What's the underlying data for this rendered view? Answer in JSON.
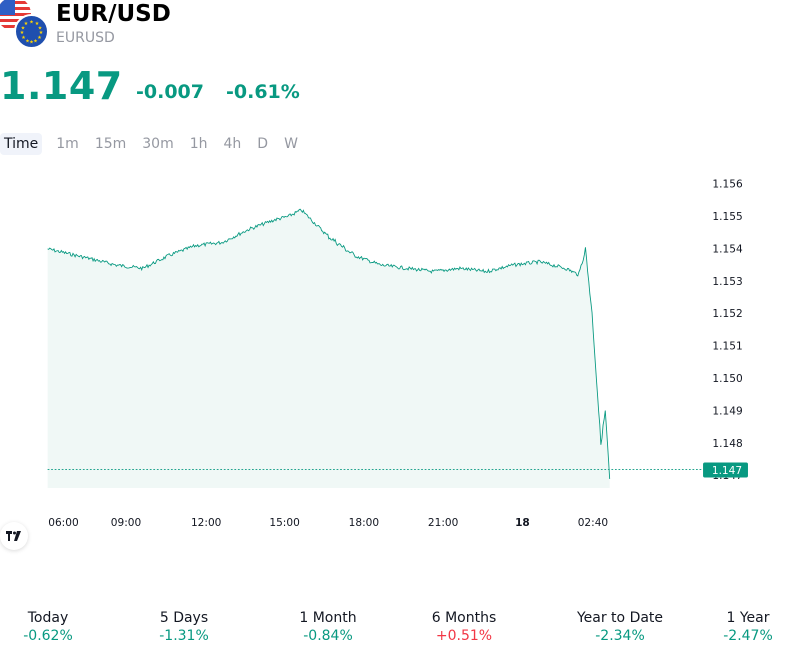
{
  "header": {
    "symbol": "EUR/USD",
    "ticker": "EURUSD",
    "price": "1.147",
    "change": "-0.007",
    "change_pct": "-0.61%"
  },
  "tabs": [
    {
      "label": "Time",
      "active": true
    },
    {
      "label": "1m"
    },
    {
      "label": "15m"
    },
    {
      "label": "30m"
    },
    {
      "label": "1h"
    },
    {
      "label": "4h"
    },
    {
      "label": "D"
    },
    {
      "label": "W"
    }
  ],
  "chart_data": {
    "type": "area",
    "y_ticks": [
      "1.156",
      "1.155",
      "1.154",
      "1.153",
      "1.152",
      "1.151",
      "1.150",
      "1.149",
      "1.148",
      "1.147"
    ],
    "ylim": [
      1.1465,
      1.1565
    ],
    "x_ticks": [
      "06:00",
      "09:00",
      "12:00",
      "15:00",
      "18:00",
      "21:00",
      "18",
      "02:40"
    ],
    "last_price_label": "1.147",
    "last_price": 1.147,
    "series": [
      {
        "x": [
          "06:00",
          "07:00",
          "08:00",
          "09:00",
          "10:00",
          "11:00",
          "12:00",
          "13:00",
          "14:00",
          "14:30",
          "15:00",
          "15:30",
          "16:00",
          "17:00",
          "18:00",
          "19:00",
          "20:00",
          "21:00",
          "22:00",
          "23:00",
          "00:00",
          "01:00",
          "01:30",
          "01:45",
          "02:00",
          "02:10",
          "02:20",
          "02:30",
          "02:40"
        ],
        "values": [
          1.154,
          1.1537,
          1.1535,
          1.1534,
          1.1538,
          1.1541,
          1.1542,
          1.1546,
          1.1549,
          1.155,
          1.1552,
          1.1548,
          1.1544,
          1.1538,
          1.1535,
          1.1534,
          1.1533,
          1.1534,
          1.1533,
          1.1535,
          1.1536,
          1.1534,
          1.1532,
          1.154,
          1.152,
          1.15,
          1.148,
          1.149,
          1.1469
        ]
      }
    ],
    "colors": {
      "line": "#089981",
      "fill": "#e9f5f2",
      "label_bg": "#089981"
    }
  },
  "performance": [
    {
      "label": "Today",
      "value": "-0.62%",
      "negative": true
    },
    {
      "label": "5 Days",
      "value": "-1.31%",
      "negative": true
    },
    {
      "label": "1 Month",
      "value": "-0.84%",
      "negative": true
    },
    {
      "label": "6 Months",
      "value": "+0.51%",
      "negative": false
    },
    {
      "label": "Year to Date",
      "value": "-2.34%",
      "negative": true
    },
    {
      "label": "1 Year",
      "value": "-2.47%",
      "negative": true
    }
  ],
  "colors": {
    "up": "#f23645",
    "down": "#089981"
  }
}
